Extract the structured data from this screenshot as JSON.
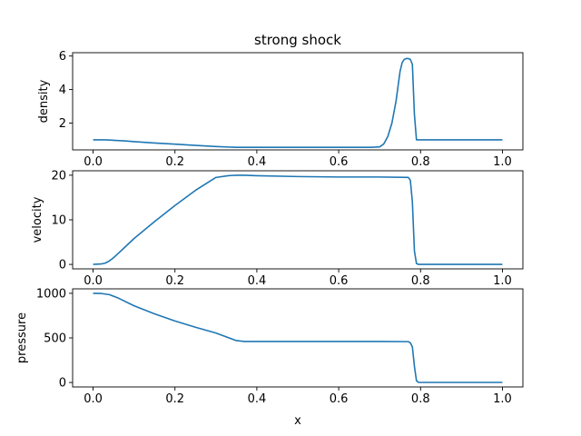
{
  "chart_data": {
    "type": "line",
    "title": "strong shock",
    "shared_xlabel": "x",
    "line_color": "#1f77b4",
    "x_ticks": [
      "0.0",
      "0.2",
      "0.4",
      "0.6",
      "0.8",
      "1.0"
    ],
    "x_tick_values": [
      0.0,
      0.2,
      0.4,
      0.6,
      0.8,
      1.0
    ],
    "xlim": [
      -0.05,
      1.05
    ],
    "grid": false,
    "subplots": [
      {
        "ylabel": "density",
        "ylim": [
          0.4,
          6.2
        ],
        "y_ticks": [
          "2",
          "4",
          "6"
        ],
        "y_tick_values": [
          2,
          4,
          6
        ],
        "x": [
          0.0,
          0.03,
          0.05,
          0.08,
          0.1,
          0.15,
          0.2,
          0.25,
          0.3,
          0.35,
          0.4,
          0.5,
          0.6,
          0.68,
          0.7,
          0.71,
          0.72,
          0.73,
          0.74,
          0.745,
          0.75,
          0.755,
          0.76,
          0.765,
          0.77,
          0.775,
          0.78,
          0.785,
          0.79,
          0.8,
          0.85,
          0.9,
          0.95,
          1.0
        ],
        "y": [
          1.0,
          1.0,
          0.97,
          0.93,
          0.89,
          0.81,
          0.74,
          0.67,
          0.6,
          0.55,
          0.55,
          0.55,
          0.55,
          0.55,
          0.58,
          0.75,
          1.2,
          2.0,
          3.3,
          4.2,
          5.1,
          5.6,
          5.8,
          5.85,
          5.85,
          5.8,
          5.5,
          2.5,
          1.0,
          1.0,
          1.0,
          1.0,
          1.0,
          1.0
        ]
      },
      {
        "ylabel": "velocity",
        "ylim": [
          -1,
          21
        ],
        "y_ticks": [
          "0",
          "10",
          "20"
        ],
        "y_tick_values": [
          0,
          10,
          20
        ],
        "x": [
          0.0,
          0.02,
          0.03,
          0.04,
          0.05,
          0.07,
          0.1,
          0.15,
          0.2,
          0.25,
          0.3,
          0.33,
          0.35,
          0.37,
          0.4,
          0.5,
          0.6,
          0.7,
          0.77,
          0.775,
          0.78,
          0.785,
          0.79,
          0.795,
          0.8,
          0.85,
          0.9,
          1.0
        ],
        "y": [
          0.0,
          0.1,
          0.3,
          0.8,
          1.5,
          3.2,
          5.8,
          9.6,
          13.2,
          16.6,
          19.5,
          19.9,
          20.0,
          20.0,
          19.9,
          19.7,
          19.6,
          19.6,
          19.5,
          18.9,
          14.0,
          3.0,
          0.2,
          0.0,
          0.0,
          0.0,
          0.0,
          0.0
        ]
      },
      {
        "ylabel": "pressure",
        "ylim": [
          -50,
          1050
        ],
        "y_ticks": [
          "0",
          "500",
          "1000"
        ],
        "y_tick_values": [
          0,
          500,
          1000
        ],
        "x": [
          0.0,
          0.02,
          0.04,
          0.06,
          0.1,
          0.15,
          0.2,
          0.25,
          0.3,
          0.35,
          0.37,
          0.4,
          0.5,
          0.6,
          0.7,
          0.77,
          0.775,
          0.78,
          0.785,
          0.79,
          0.795,
          0.8,
          0.85,
          0.9,
          1.0
        ],
        "y": [
          1000,
          998,
          985,
          950,
          860,
          770,
          690,
          620,
          555,
          470,
          460,
          460,
          460,
          460,
          460,
          458,
          445,
          400,
          180,
          20,
          1,
          1,
          1,
          1,
          1
        ]
      }
    ]
  }
}
